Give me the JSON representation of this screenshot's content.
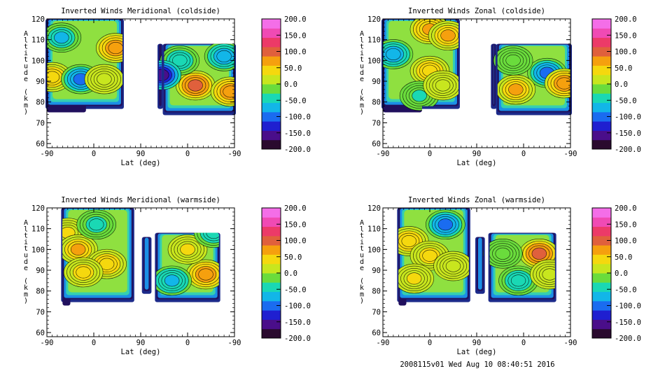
{
  "footer": "2008115v01 Wed Aug 10 08:40:51 2016",
  "colorbar": {
    "ticks": [
      "200.0",
      "150.0",
      "100.0",
      "50.0",
      "0.0",
      "-50.0",
      "-100.0",
      "-150.0",
      "-200.0"
    ],
    "stops": [
      "#2a0a2e",
      "#4a0e8a",
      "#1f1fd0",
      "#1a6cf0",
      "#12b6e8",
      "#1ad8b4",
      "#6adc3c",
      "#c8e61e",
      "#f5d80e",
      "#f5a00e",
      "#e0603c",
      "#ec3a68",
      "#f04ab4",
      "#f46ee8"
    ]
  },
  "chart_data": [
    {
      "type": "heatmap",
      "title": "Inverted Winds Meridional (coldside)",
      "xlabel": "Lat (deg)",
      "ylabel": "Altitude (km)",
      "xticks": [
        "-90",
        "0",
        "90",
        "0",
        "-90"
      ],
      "yticks": [
        "60",
        "70",
        "80",
        "90",
        "100",
        "110",
        "120"
      ],
      "ylim": [
        58,
        120
      ],
      "colorbar_range": [
        -200,
        200
      ],
      "regions": [
        {
          "x0": -90,
          "x1": 55,
          "ytop": 120,
          "ybot": 78,
          "bottom_steps": [
            [
              -90,
              75
            ],
            [
              -15,
              78
            ]
          ]
        },
        {
          "x0": 125,
          "x1": 130,
          "ytop": 108,
          "ybot": 78
        },
        {
          "x0": 135,
          "x1": 270,
          "ytop": 108,
          "ybot": 75
        }
      ],
      "features": [
        {
          "x": -80,
          "y": 92,
          "v": 60
        },
        {
          "x": -25,
          "y": 91,
          "v": -110
        },
        {
          "x": 20,
          "y": 91,
          "v": 20
        },
        {
          "x": 42,
          "y": 106,
          "v": 90
        },
        {
          "x": -62,
          "y": 111,
          "v": -70
        },
        {
          "x": 195,
          "y": 88,
          "v": 110
        },
        {
          "x": 262,
          "y": 85,
          "v": 100
        },
        {
          "x": 250,
          "y": 102,
          "v": -100
        },
        {
          "x": 165,
          "y": 100,
          "v": -60
        },
        {
          "x": 130,
          "y": 93,
          "v": -190
        }
      ]
    },
    {
      "type": "heatmap",
      "title": "Inverted Winds Zonal (coldside)",
      "xlabel": "Lat (deg)",
      "ylabel": "Altitude (km)",
      "xticks": [
        "-90",
        "0",
        "90",
        "0",
        "-90"
      ],
      "yticks": [
        "60",
        "70",
        "80",
        "90",
        "100",
        "110",
        "120"
      ],
      "ylim": [
        58,
        120
      ],
      "colorbar_range": [
        -200,
        200
      ],
      "regions": [
        {
          "x0": -90,
          "x1": 55,
          "ytop": 120,
          "ybot": 78,
          "bottom_steps": [
            [
              -90,
              75
            ],
            [
              -15,
              78
            ]
          ]
        },
        {
          "x0": 120,
          "x1": 126,
          "ytop": 108,
          "ybot": 78
        },
        {
          "x0": 130,
          "x1": 270,
          "ytop": 108,
          "ybot": 75
        }
      ],
      "features": [
        {
          "x": 0,
          "y": 115,
          "v": 80
        },
        {
          "x": 35,
          "y": 112,
          "v": 70
        },
        {
          "x": -70,
          "y": 103,
          "v": -90
        },
        {
          "x": 0,
          "y": 95,
          "v": 60
        },
        {
          "x": -20,
          "y": 83,
          "v": -40
        },
        {
          "x": 25,
          "y": 88,
          "v": 20
        },
        {
          "x": 225,
          "y": 94,
          "v": -110
        },
        {
          "x": 258,
          "y": 89,
          "v": 100
        },
        {
          "x": 165,
          "y": 86,
          "v": 70
        },
        {
          "x": 160,
          "y": 100,
          "v": -20
        }
      ]
    },
    {
      "type": "heatmap",
      "title": "Inverted Winds Meridional (warmside)",
      "xlabel": "Lat (deg)",
      "ylabel": "Altitude (km)",
      "xticks": [
        "-90",
        "0",
        "90",
        "0",
        "-90"
      ],
      "yticks": [
        "60",
        "70",
        "80",
        "90",
        "100",
        "110",
        "120"
      ],
      "ylim": [
        58,
        120
      ],
      "colorbar_range": [
        -200,
        200
      ],
      "regions": [
        {
          "x0": -60,
          "x1": 75,
          "ytop": 120,
          "ybot": 76,
          "bottom_steps": [
            [
              -60,
              73
            ],
            [
              -45,
              76
            ]
          ]
        },
        {
          "x0": 95,
          "x1": 108,
          "ytop": 106,
          "ybot": 80
        },
        {
          "x0": 120,
          "x1": 240,
          "ytop": 108,
          "ybot": 76
        }
      ],
      "features": [
        {
          "x": -50,
          "y": 108,
          "v": 40
        },
        {
          "x": -30,
          "y": 100,
          "v": 70
        },
        {
          "x": 25,
          "y": 93,
          "v": 60
        },
        {
          "x": -20,
          "y": 89,
          "v": 50
        },
        {
          "x": 5,
          "y": 112,
          "v": -50
        },
        {
          "x": 215,
          "y": 88,
          "v": 90
        },
        {
          "x": 180,
          "y": 100,
          "v": 40
        },
        {
          "x": 150,
          "y": 85,
          "v": -80
        },
        {
          "x": 230,
          "y": 108,
          "v": -60
        }
      ]
    },
    {
      "type": "heatmap",
      "title": "Inverted Winds Zonal (warmside)",
      "xlabel": "Lat (deg)",
      "ylabel": "Altitude (km)",
      "xticks": [
        "-90",
        "0",
        "90",
        "0",
        "-90"
      ],
      "yticks": [
        "60",
        "70",
        "80",
        "90",
        "100",
        "110",
        "120"
      ],
      "ylim": [
        58,
        120
      ],
      "colorbar_range": [
        -200,
        200
      ],
      "regions": [
        {
          "x0": -60,
          "x1": 75,
          "ytop": 120,
          "ybot": 76,
          "bottom_steps": [
            [
              -60,
              73
            ],
            [
              -45,
              76
            ]
          ]
        },
        {
          "x0": 90,
          "x1": 103,
          "ytop": 106,
          "ybot": 80
        },
        {
          "x0": 115,
          "x1": 240,
          "ytop": 108,
          "ybot": 76
        }
      ],
      "features": [
        {
          "x": 30,
          "y": 112,
          "v": -120
        },
        {
          "x": -40,
          "y": 104,
          "v": 60
        },
        {
          "x": 0,
          "y": 97,
          "v": 50
        },
        {
          "x": 45,
          "y": 92,
          "v": 10
        },
        {
          "x": -30,
          "y": 86,
          "v": 40
        },
        {
          "x": 210,
          "y": 98,
          "v": 110
        },
        {
          "x": 140,
          "y": 98,
          "v": -30
        },
        {
          "x": 170,
          "y": 85,
          "v": -60
        },
        {
          "x": 230,
          "y": 88,
          "v": 20
        }
      ]
    }
  ]
}
